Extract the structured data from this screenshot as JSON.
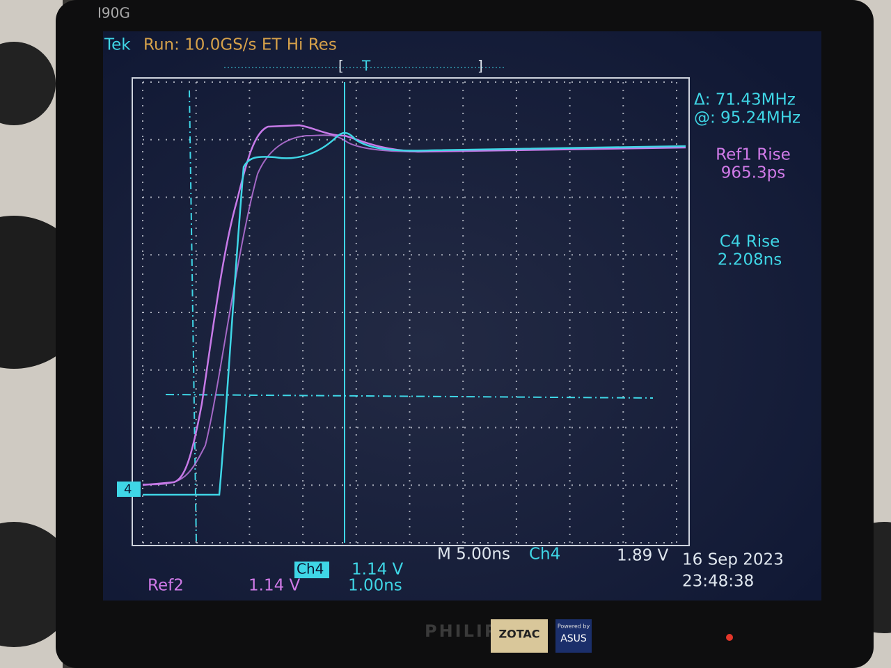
{
  "monitor": {
    "model": "I90G",
    "brand": "PHILIPS"
  },
  "stickers": {
    "zotac": "ZOTAC",
    "powered_by": "Powered by",
    "asus": "ASUS"
  },
  "scope": {
    "header": {
      "brand": "Tek",
      "status": "Run: 10.0GS/s ET Hi Res"
    },
    "trigger_marker": "T",
    "channel_marker": "4",
    "cursor_readout": {
      "delta": "Δ: 71.43MHz",
      "at": "@: 95.24MHz"
    },
    "measurements": [
      {
        "label": "Ref1 Rise",
        "value": "965.3ps"
      },
      {
        "label": "C4 Rise",
        "value": "2.208ns"
      }
    ],
    "footer": {
      "timebase": "M 5.00ns",
      "trigger_source": "Ch4",
      "trigger_level": "1.89 V",
      "date": "16 Sep 2023",
      "time": "23:48:38",
      "ch4_label": "Ch4",
      "ch4_scale": "1.14 V",
      "ch4_time": "1.00ns",
      "ref2_label": "Ref2",
      "ref2_scale": "1.14 V"
    }
  }
}
